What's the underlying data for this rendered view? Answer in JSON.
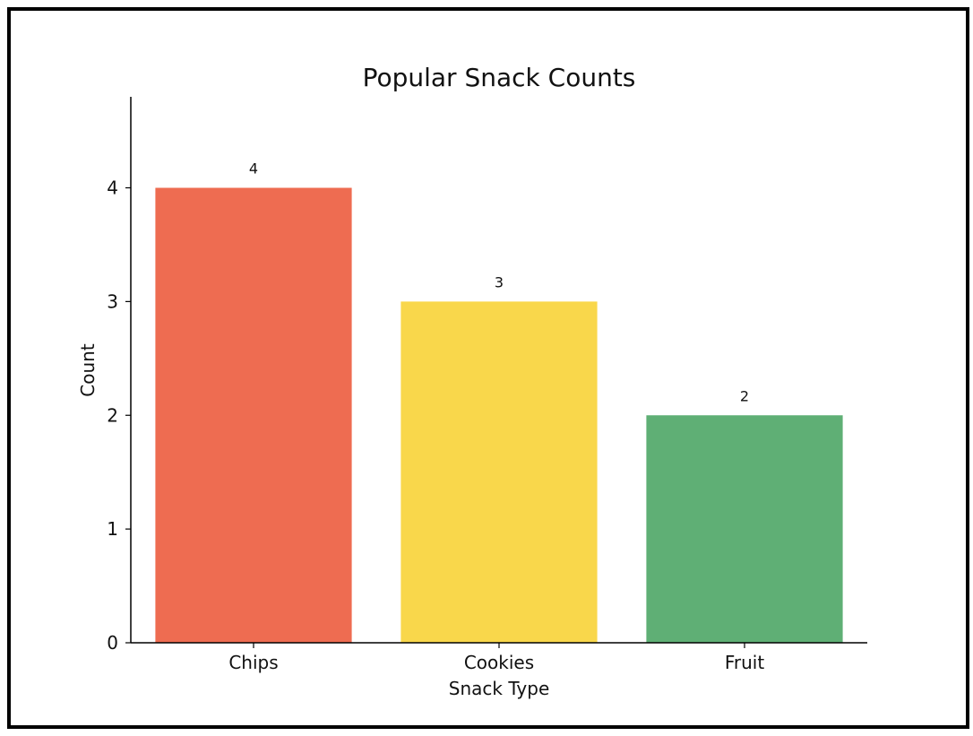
{
  "chart_data": {
    "type": "bar",
    "title": "Popular Snack Counts",
    "xlabel": "Snack Type",
    "ylabel": "Count",
    "categories": [
      "Chips",
      "Cookies",
      "Fruit"
    ],
    "values": [
      4,
      3,
      2
    ],
    "data_labels": [
      "4",
      "3",
      "2"
    ],
    "colors": [
      "#EE6C51",
      "#F9D74B",
      "#5FAF75"
    ],
    "yticks": [
      0,
      1,
      2,
      3,
      4
    ],
    "ylim": [
      0,
      4.8
    ],
    "grid": false,
    "legend": "none"
  }
}
